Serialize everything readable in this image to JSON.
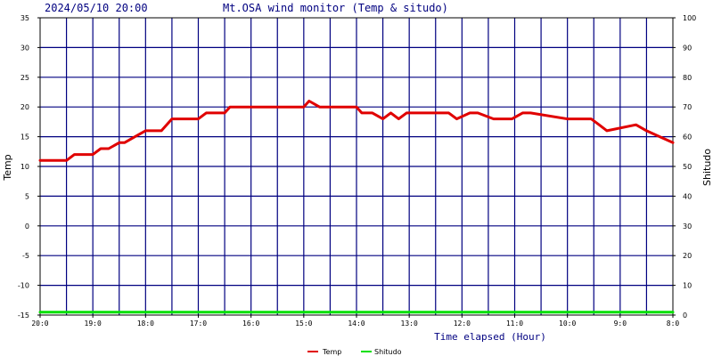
{
  "header": {
    "timestamp": "2024/05/10 20:00",
    "title": "Mt.OSA wind monitor (Temp & situdo)"
  },
  "colors": {
    "background": "#ffffff",
    "grid": "#000080",
    "axis": "#000000",
    "temp": "#e00000",
    "shitudo": "#00e000"
  },
  "chart_data": {
    "type": "line",
    "title": "Mt.OSA wind monitor (Temp & situdo)",
    "xlabel": "Time elapsed (Hour)",
    "ylabel_left": "Temp",
    "ylabel_right": "Shitudo",
    "ylim_left": [
      -15,
      35
    ],
    "ylim_right": [
      0,
      100
    ],
    "yticks_left": [
      "35",
      "30",
      "25",
      "20",
      "15",
      "10",
      "5",
      "0",
      "-5",
      "-10",
      "-15"
    ],
    "yticks_right": [
      "100",
      "90",
      "80",
      "70",
      "60",
      "50",
      "40",
      "30",
      "20",
      "10",
      "0"
    ],
    "xlim": [
      0,
      12
    ],
    "x_reversed": true,
    "x_minor_per_major": 2,
    "xtick_labels": [
      "20:0",
      "19:0",
      "18:0",
      "17:0",
      "16:0",
      "15:0",
      "14:0",
      "13:0",
      "12:0",
      "11:0",
      "10:0",
      "9:0",
      "8:0"
    ],
    "grid": true,
    "legend_position": "bottom-center",
    "series": [
      {
        "name": "Temp",
        "color": "#e00000",
        "axis": "left",
        "x": [
          0,
          0.5,
          0.65,
          1,
          1.15,
          1.3,
          1.5,
          1.6,
          1.8,
          2,
          2.3,
          2.5,
          2.6,
          3,
          3.15,
          3.5,
          3.6,
          4,
          4.2,
          5,
          5.1,
          5.3,
          6,
          6.1,
          6.3,
          6.5,
          6.65,
          6.8,
          6.95,
          7.5,
          7.75,
          7.9,
          8.15,
          8.3,
          8.6,
          8.8,
          8.95,
          9.15,
          9.3,
          10,
          10.15,
          10.45,
          10.6,
          10.75,
          11.3,
          11.5,
          11.75,
          12
        ],
        "values": [
          11,
          11,
          12,
          12,
          13,
          13,
          14,
          14,
          15,
          16,
          16,
          18,
          18,
          18,
          19,
          19,
          20,
          20,
          20,
          20,
          21,
          20,
          20,
          19,
          19,
          18,
          19,
          18,
          19,
          19,
          19,
          18,
          19,
          19,
          18,
          18,
          18,
          19,
          19,
          18,
          18,
          18,
          17,
          16,
          17,
          16,
          15,
          14
        ]
      },
      {
        "name": "Shitudo",
        "color": "#00e000",
        "axis": "right",
        "x": [
          0,
          12
        ],
        "values": [
          1,
          1
        ]
      }
    ]
  }
}
